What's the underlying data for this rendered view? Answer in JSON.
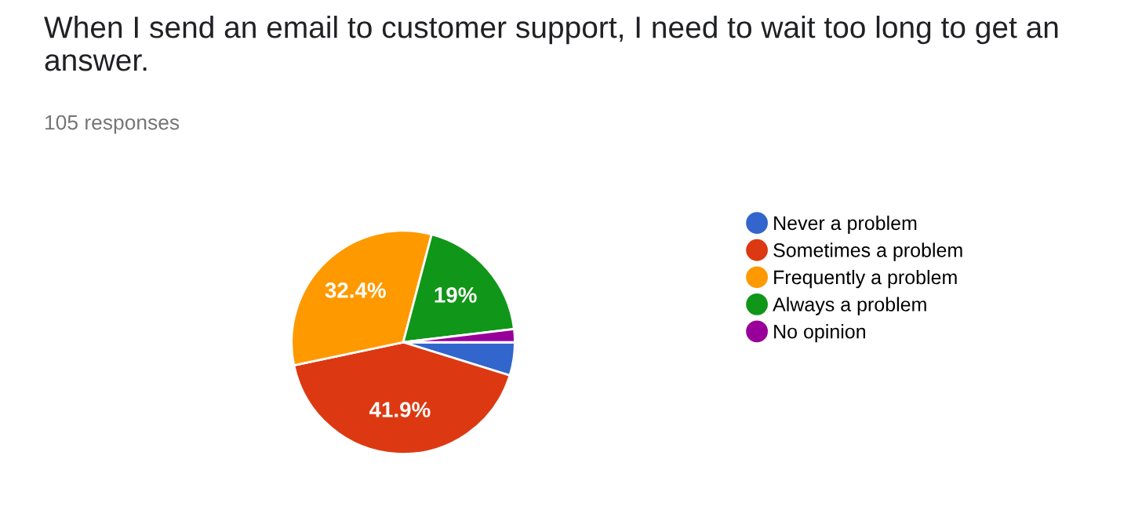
{
  "chart_data": {
    "type": "pie",
    "title": "When I send an email to customer support, I need to wait too long to get an answer.",
    "subtitle": "105 responses",
    "categories": [
      "Never a problem",
      "Sometimes a problem",
      "Frequently a problem",
      "Always a problem",
      "No opinion"
    ],
    "values": [
      4.8,
      41.9,
      32.4,
      19,
      1.9
    ],
    "value_labels": [
      null,
      "41.9%",
      "32.4%",
      "19%",
      null
    ],
    "colors": [
      "#3366cc",
      "#dc3912",
      "#ff9900",
      "#109618",
      "#990099"
    ],
    "legend": "right"
  }
}
